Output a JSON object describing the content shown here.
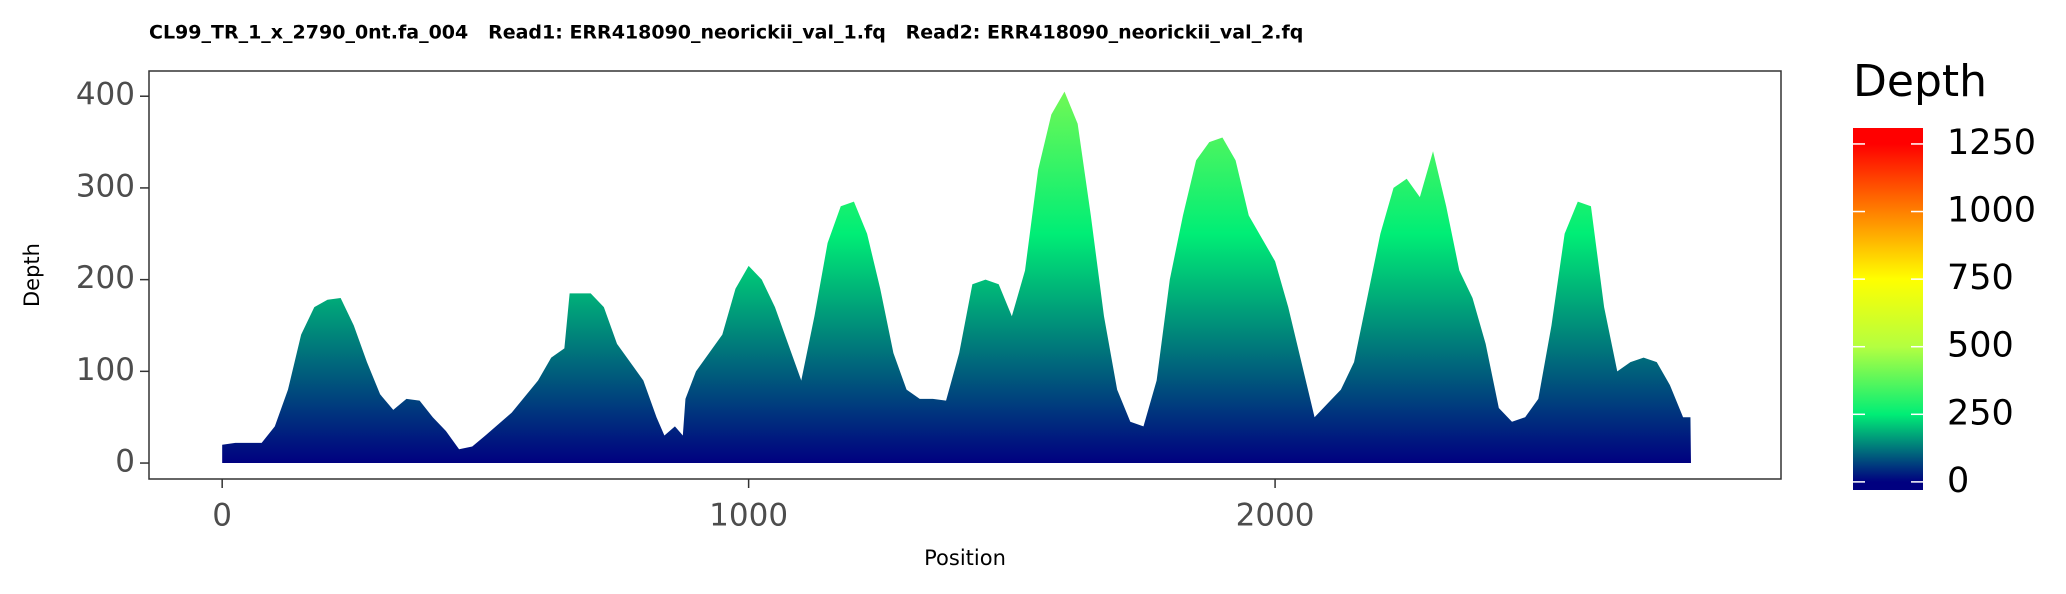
{
  "chart_data": {
    "type": "area",
    "title": "CL99_TR_1_x_2790_0nt.fa_004   Read1: ERR418090_neorickii_val_1.fq   Read2: ERR418090_neorickii_val_2.fq",
    "x_label": "Position",
    "y_label": "Depth",
    "x": [
      0,
      25,
      50,
      75,
      100,
      125,
      150,
      175,
      200,
      225,
      250,
      275,
      300,
      325,
      350,
      375,
      400,
      425,
      450,
      475,
      500,
      550,
      600,
      625,
      650,
      660,
      700,
      725,
      750,
      800,
      825,
      840,
      860,
      875,
      880,
      900,
      950,
      975,
      1000,
      1025,
      1050,
      1075,
      1100,
      1125,
      1150,
      1175,
      1200,
      1225,
      1250,
      1275,
      1300,
      1325,
      1350,
      1375,
      1400,
      1425,
      1450,
      1475,
      1500,
      1525,
      1550,
      1575,
      1600,
      1625,
      1650,
      1675,
      1700,
      1725,
      1750,
      1775,
      1800,
      1825,
      1850,
      1875,
      1900,
      1925,
      1950,
      1975,
      2000,
      2025,
      2050,
      2075,
      2100,
      2125,
      2150,
      2175,
      2200,
      2225,
      2250,
      2275,
      2300,
      2325,
      2350,
      2375,
      2400,
      2425,
      2450,
      2475,
      2500,
      2525,
      2550,
      2575,
      2600,
      2625,
      2650,
      2675,
      2700,
      2725,
      2750,
      2775,
      2789,
      2790
    ],
    "values": [
      20,
      22,
      22,
      22,
      40,
      80,
      140,
      170,
      178,
      180,
      150,
      110,
      75,
      58,
      70,
      68,
      50,
      35,
      15,
      18,
      30,
      55,
      90,
      115,
      125,
      185,
      185,
      170,
      130,
      90,
      50,
      30,
      40,
      30,
      70,
      100,
      140,
      190,
      215,
      200,
      170,
      130,
      90,
      160,
      240,
      280,
      285,
      250,
      190,
      120,
      80,
      70,
      70,
      68,
      120,
      195,
      200,
      195,
      160,
      210,
      320,
      380,
      405,
      370,
      270,
      160,
      80,
      45,
      40,
      90,
      200,
      270,
      330,
      350,
      355,
      330,
      270,
      245,
      220,
      170,
      110,
      50,
      65,
      80,
      110,
      180,
      250,
      300,
      310,
      290,
      340,
      280,
      210,
      180,
      130,
      60,
      45,
      50,
      70,
      150,
      250,
      285,
      280,
      170,
      100,
      110,
      115,
      110,
      85,
      50,
      50,
      0
    ],
    "xlim": [
      -139,
      2961
    ],
    "ylim": [
      -17.4,
      427.5
    ],
    "xticks": [
      0,
      1000,
      2000
    ],
    "yticks": [
      0,
      100,
      200,
      300,
      400
    ],
    "legend": {
      "title": "Depth",
      "lim": [
        -30,
        1309
      ],
      "ticks": [
        0,
        250,
        500,
        750,
        1000,
        1250
      ]
    },
    "fill_gradient": [
      {
        "value": 0,
        "color": "#000080"
      },
      {
        "value": 250,
        "color": "#00ee76"
      },
      {
        "value": 500,
        "color": "#b4ff40"
      },
      {
        "value": 750,
        "color": "#ffff00"
      },
      {
        "value": 1000,
        "color": "#ff8000"
      },
      {
        "value": 1250,
        "color": "#ff0000"
      }
    ]
  }
}
